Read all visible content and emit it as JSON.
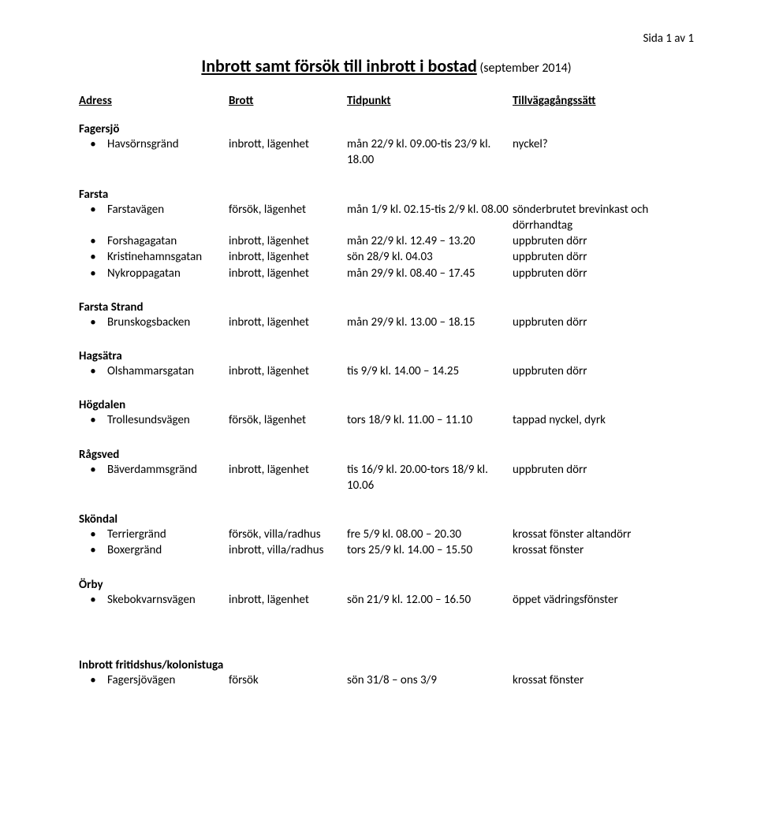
{
  "page_label": "Sida 1 av 1",
  "title_main": "Inbrott samt försök till inbrott i bostad",
  "title_sub": "(september 2014)",
  "headers": {
    "address": "Adress",
    "crime": "Brott",
    "time": "Tidpunkt",
    "method": "Tillvägagångssätt"
  },
  "areas": [
    {
      "name": "Fagersjö",
      "entries": [
        {
          "address": "Havsörnsgränd",
          "crime": "inbrott, lägenhet",
          "time": "mån 22/9 kl. 09.00-tis 23/9 kl. 18.00",
          "method": "nyckel?"
        }
      ]
    },
    {
      "name": "Farsta",
      "entries": [
        {
          "address": "Farstavägen",
          "crime": "försök, lägenhet",
          "time": "mån 1/9 kl. 02.15-tis 2/9 kl. 08.00",
          "method": "sönderbrutet brevinkast och",
          "method_wrap": "dörrhandtag"
        },
        {
          "address": "Forshagagatan",
          "crime": "inbrott, lägenhet",
          "time": "mån 22/9 kl. 12.49 – 13.20",
          "method": "uppbruten dörr"
        },
        {
          "address": "Kristinehamnsgatan",
          "crime": "inbrott, lägenhet",
          "time": "sön 28/9 kl. 04.03",
          "method": "uppbruten dörr"
        },
        {
          "address": "Nykroppagatan",
          "crime": "inbrott, lägenhet",
          "time": "mån 29/9 kl. 08.40 – 17.45",
          "method": "uppbruten dörr"
        }
      ]
    },
    {
      "name": "Farsta Strand",
      "entries": [
        {
          "address": "Brunskogsbacken",
          "crime": "inbrott, lägenhet",
          "time": "mån 29/9 kl. 13.00 – 18.15",
          "method": "uppbruten dörr"
        }
      ]
    },
    {
      "name": "Hagsätra",
      "entries": [
        {
          "address": "Olshammarsgatan",
          "crime": "inbrott, lägenhet",
          "time": "tis 9/9 kl. 14.00 – 14.25",
          "method": "uppbruten dörr"
        }
      ]
    },
    {
      "name": "Högdalen",
      "entries": [
        {
          "address": "Trollesundsvägen",
          "crime": "försök, lägenhet",
          "time": "tors 18/9 kl. 11.00 – 11.10",
          "method": "tappad nyckel, dyrk"
        }
      ]
    },
    {
      "name": "Rågsved",
      "entries": [
        {
          "address": "Bäverdammsgränd",
          "crime": "inbrott, lägenhet",
          "time": "tis 16/9 kl. 20.00-tors 18/9 kl. 10.06",
          "method": "uppbruten dörr"
        }
      ]
    },
    {
      "name": "Sköndal",
      "entries": [
        {
          "address": "Terriergränd",
          "crime": "försök, villa/radhus",
          "time": "fre 5/9 kl. 08.00 – 20.30",
          "method": "krossat fönster altandörr"
        },
        {
          "address": "Boxergränd",
          "crime": "inbrott, villa/radhus",
          "time": "tors 25/9 kl. 14.00 – 15.50",
          "method": "krossat fönster"
        }
      ]
    },
    {
      "name": "Örby",
      "entries": [
        {
          "address": "Skebokvarnsvägen",
          "crime": "inbrott, lägenhet",
          "time": "sön 21/9 kl. 12.00 – 16.50",
          "method": "öppet vädringsfönster"
        }
      ]
    }
  ],
  "section2": {
    "heading": "Inbrott fritidshus/kolonistuga",
    "entries": [
      {
        "address": "Fagersjövägen",
        "crime": "försök",
        "time": "sön 31/8 – ons 3/9",
        "method": "krossat fönster"
      }
    ]
  }
}
